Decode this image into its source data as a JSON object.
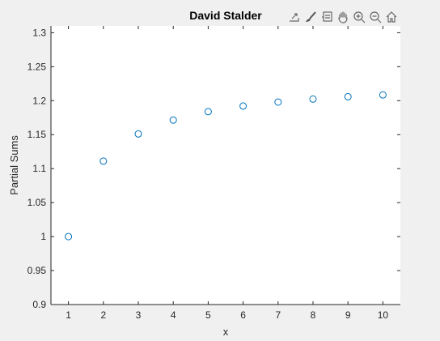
{
  "toolbar": {
    "buttons": [
      {
        "icon": "export-icon"
      },
      {
        "icon": "brush-icon"
      },
      {
        "icon": "datatip-icon"
      },
      {
        "icon": "pan-hand-icon"
      },
      {
        "icon": "zoom-in-icon"
      },
      {
        "icon": "zoom-out-icon"
      },
      {
        "icon": "home-icon"
      }
    ]
  },
  "chart_data": {
    "type": "scatter",
    "title": "David Stalder",
    "xlabel": "x",
    "ylabel": "Partial Sums",
    "xlim": [
      0.5,
      10.5
    ],
    "ylim": [
      0.9,
      1.31
    ],
    "xticks": [
      "1",
      "2",
      "3",
      "4",
      "5",
      "6",
      "7",
      "8",
      "9",
      "10"
    ],
    "yticks": [
      "0.9",
      "0.95",
      "1",
      "1.05",
      "1.1",
      "1.15",
      "1.2",
      "1.25",
      "1.3"
    ],
    "grid": false,
    "marker": "open-circle",
    "color": "#0072bd",
    "series": [
      {
        "x": [
          1,
          2,
          3,
          4,
          5,
          6,
          7,
          8,
          9,
          10
        ],
        "values": [
          1.0,
          1.1111,
          1.1511,
          1.1715,
          1.1839,
          1.1921,
          1.198,
          1.2024,
          1.2058,
          1.2085
        ]
      }
    ]
  }
}
